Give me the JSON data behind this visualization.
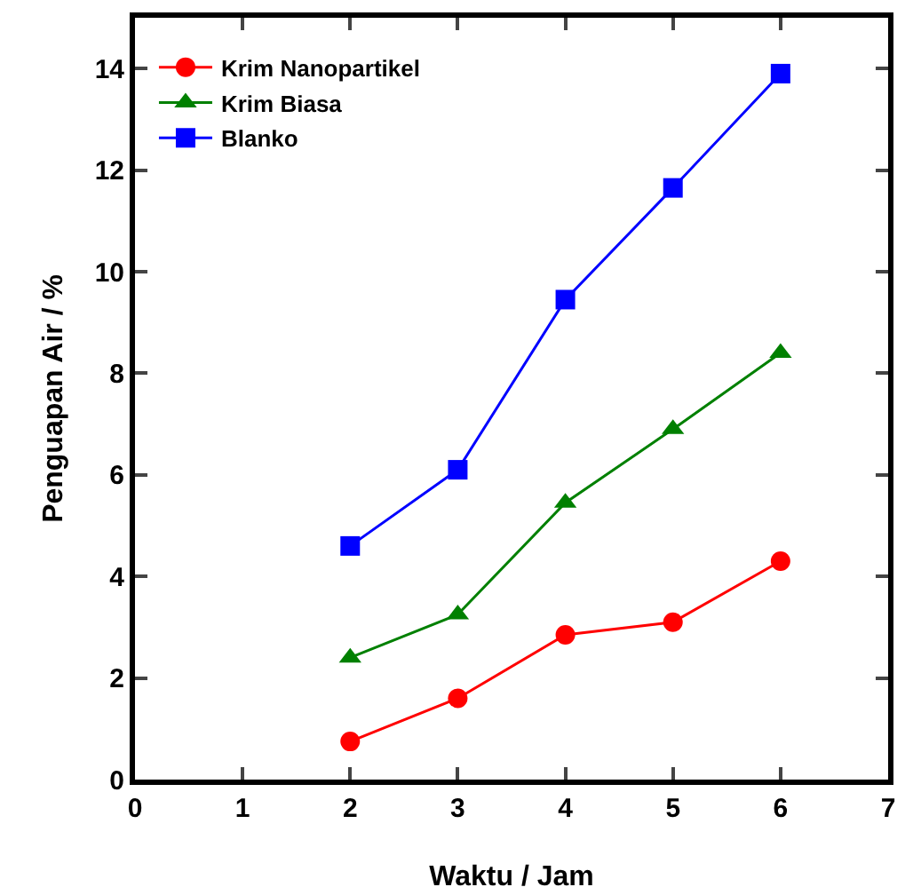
{
  "chart_data": {
    "type": "line",
    "xlabel": "Waktu / Jam",
    "ylabel": "Penguapan Air / %",
    "x": [
      2,
      3,
      4,
      5,
      6
    ],
    "series": [
      {
        "name": "Krim Nanopartikel",
        "color": "#ff0000",
        "marker": "circle",
        "values": [
          0.75,
          1.6,
          2.85,
          3.1,
          4.3
        ]
      },
      {
        "name": "Krim Biasa",
        "color": "#008000",
        "marker": "triangle",
        "values": [
          2.4,
          3.25,
          5.45,
          6.9,
          8.4
        ]
      },
      {
        "name": "Blanko",
        "color": "#0000ff",
        "marker": "square",
        "values": [
          4.6,
          6.1,
          9.45,
          11.65,
          13.9
        ]
      }
    ],
    "xlim": [
      0,
      7
    ],
    "xticks": [
      0,
      1,
      2,
      3,
      4,
      5,
      6,
      7
    ],
    "ylim": [
      0,
      15
    ],
    "yticks": [
      0,
      2,
      4,
      6,
      8,
      10,
      12,
      14
    ],
    "grid": false,
    "legend": "top left",
    "line_style": "solid"
  }
}
